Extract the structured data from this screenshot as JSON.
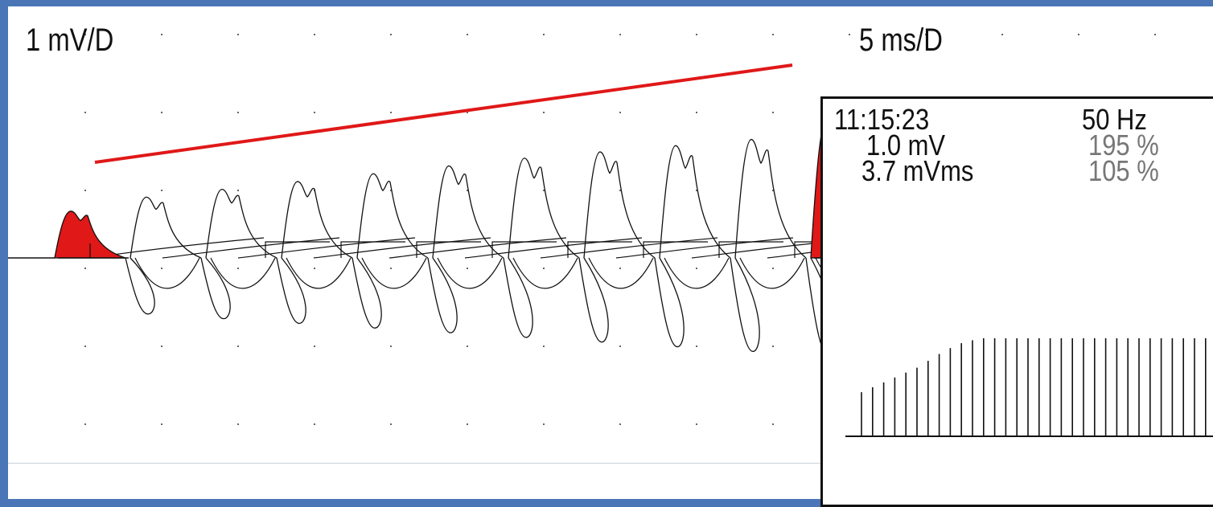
{
  "labels": {
    "vertical_scale": "1 mV/D",
    "horizontal_scale": "5 ms/D"
  },
  "info_panel": {
    "time": "11:15:23",
    "frequency": "50 Hz",
    "amplitude": "1.0 mV",
    "amplitude_percent": "195 %",
    "area": "3.7 mVms",
    "area_percent": "105 %"
  },
  "colors": {
    "trace": "#111111",
    "highlight": "#e01818",
    "trend_line": "#e01818",
    "grid_dots": "#666666",
    "frame": "#4a76b8"
  },
  "chart_data": [
    {
      "type": "line",
      "title": "",
      "xlabel": "",
      "ylabel": "",
      "x_unit": "ms",
      "y_unit": "mV",
      "series": [
        {
          "peak_amplitudes_mV": [
            0.6,
            0.78,
            0.88,
            0.98,
            1.08,
            1.18,
            1.28,
            1.36,
            1.44,
            1.52,
            1.8
          ],
          "first_response_highlighted": true,
          "last_response_highlighted": true
        }
      ],
      "trend": "increasing"
    },
    {
      "type": "bar",
      "title": "",
      "values": [
        0.45,
        0.5,
        0.55,
        0.6,
        0.65,
        0.7,
        0.77,
        0.84,
        0.9,
        0.95,
        0.98,
        1,
        1,
        1,
        1,
        1,
        1,
        1,
        1,
        1,
        1,
        1,
        1,
        1,
        1,
        1,
        1,
        1,
        1,
        1,
        1,
        1
      ]
    }
  ]
}
